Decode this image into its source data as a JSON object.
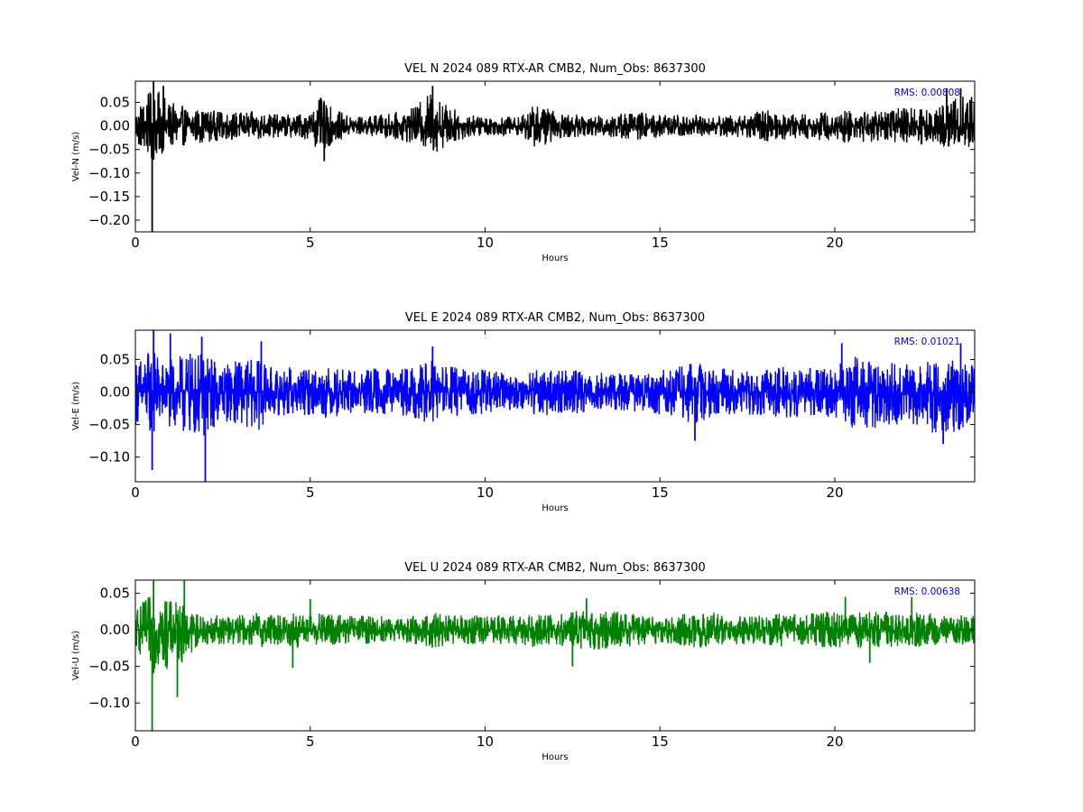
{
  "chart_data": [
    {
      "type": "line",
      "title": "VEL N 2024 089 RTX-AR  CMB2, Num_Obs: 8637300",
      "xlabel": "Hours",
      "ylabel": "Vel-N (m/s)",
      "xlim": [
        0,
        24
      ],
      "ylim": [
        -0.225,
        0.095
      ],
      "xticks": [
        0,
        5,
        10,
        15,
        20
      ],
      "yticks": [
        0.05,
        0.0,
        -0.05,
        -0.1,
        -0.15,
        -0.2
      ],
      "ytick_labels": [
        "0.05",
        "0.00",
        "−0.05",
        "−0.10",
        "−0.15",
        "−0.20"
      ],
      "grid": false,
      "series_color": "#000000",
      "annotation": "RMS:  0.00808",
      "annotation_color": "#0000ff",
      "envelope": {
        "x": [
          0,
          0.25,
          0.5,
          0.75,
          1,
          1.5,
          2,
          2.5,
          3,
          3.5,
          4,
          4.5,
          5,
          5.3,
          5.6,
          6,
          6.5,
          7,
          7.5,
          8,
          8.5,
          9,
          9.5,
          10,
          10.5,
          11,
          11.5,
          12,
          12.5,
          13,
          13.5,
          14,
          14.5,
          15,
          15.5,
          16,
          16.5,
          17,
          17.5,
          18,
          18.5,
          19,
          19.5,
          20,
          20.5,
          21,
          21.5,
          22,
          22.5,
          23,
          23.5,
          24
        ],
        "upper": [
          0.04,
          0.06,
          0.08,
          0.07,
          0.05,
          0.04,
          0.035,
          0.03,
          0.03,
          0.03,
          0.025,
          0.025,
          0.03,
          0.06,
          0.04,
          0.025,
          0.02,
          0.025,
          0.03,
          0.04,
          0.08,
          0.04,
          0.025,
          0.02,
          0.02,
          0.02,
          0.05,
          0.03,
          0.025,
          0.02,
          0.025,
          0.03,
          0.03,
          0.025,
          0.025,
          0.025,
          0.02,
          0.025,
          0.025,
          0.035,
          0.03,
          0.025,
          0.03,
          0.03,
          0.035,
          0.035,
          0.035,
          0.04,
          0.04,
          0.05,
          0.07,
          0.06
        ],
        "lower": [
          -0.04,
          -0.06,
          -0.08,
          -0.06,
          -0.05,
          -0.04,
          -0.035,
          -0.03,
          -0.03,
          -0.03,
          -0.025,
          -0.025,
          -0.03,
          -0.06,
          -0.04,
          -0.025,
          -0.02,
          -0.025,
          -0.03,
          -0.04,
          -0.06,
          -0.04,
          -0.025,
          -0.02,
          -0.02,
          -0.02,
          -0.05,
          -0.03,
          -0.025,
          -0.02,
          -0.025,
          -0.03,
          -0.03,
          -0.025,
          -0.025,
          -0.025,
          -0.02,
          -0.025,
          -0.025,
          -0.035,
          -0.03,
          -0.025,
          -0.03,
          -0.03,
          -0.04,
          -0.035,
          -0.035,
          -0.04,
          -0.04,
          -0.04,
          -0.05,
          -0.045
        ]
      },
      "spikes": [
        {
          "x": 0.48,
          "y": -0.225
        },
        {
          "x": 0.52,
          "y": 0.095
        },
        {
          "x": 0.8,
          "y": 0.085
        },
        {
          "x": 5.3,
          "y": 0.06
        },
        {
          "x": 5.4,
          "y": -0.075
        },
        {
          "x": 8.5,
          "y": 0.085
        },
        {
          "x": 23.2,
          "y": 0.08
        },
        {
          "x": 23.6,
          "y": 0.08
        }
      ]
    },
    {
      "type": "line",
      "title": "VEL E 2024 089 RTX-AR  CMB2, Num_Obs: 8637300",
      "xlabel": "Hours",
      "ylabel": "Vel-E (m/s)",
      "xlim": [
        0,
        24
      ],
      "ylim": [
        -0.138,
        0.095
      ],
      "xticks": [
        0,
        5,
        10,
        15,
        20
      ],
      "yticks": [
        0.05,
        0.0,
        -0.05,
        -0.1
      ],
      "ytick_labels": [
        "0.05",
        "0.00",
        "−0.05",
        "−0.10"
      ],
      "grid": false,
      "series_color": "#0000ff",
      "annotation": "RMS:  0.01021",
      "annotation_color": "#0000ff",
      "envelope": {
        "x": [
          0,
          0.25,
          0.5,
          0.75,
          1,
          1.5,
          2,
          2.5,
          3,
          3.5,
          4,
          4.5,
          5,
          5.5,
          6,
          6.5,
          7,
          7.5,
          8,
          8.5,
          9,
          9.5,
          10,
          10.5,
          11,
          11.5,
          12,
          12.5,
          13,
          13.5,
          14,
          14.5,
          15,
          15.5,
          16,
          16.5,
          17,
          17.5,
          18,
          18.5,
          19,
          19.5,
          20,
          20.5,
          21,
          21.5,
          22,
          22.5,
          23,
          23.5,
          24
        ],
        "upper": [
          0.05,
          0.06,
          0.07,
          0.05,
          0.05,
          0.06,
          0.06,
          0.045,
          0.05,
          0.05,
          0.035,
          0.04,
          0.035,
          0.04,
          0.035,
          0.035,
          0.04,
          0.035,
          0.04,
          0.05,
          0.04,
          0.035,
          0.035,
          0.03,
          0.025,
          0.04,
          0.035,
          0.035,
          0.03,
          0.03,
          0.03,
          0.03,
          0.035,
          0.04,
          0.045,
          0.04,
          0.035,
          0.035,
          0.035,
          0.04,
          0.04,
          0.035,
          0.04,
          0.055,
          0.05,
          0.045,
          0.045,
          0.045,
          0.05,
          0.05,
          0.045
        ],
        "lower": [
          -0.05,
          -0.06,
          -0.07,
          -0.05,
          -0.06,
          -0.07,
          -0.07,
          -0.045,
          -0.05,
          -0.06,
          -0.035,
          -0.04,
          -0.035,
          -0.04,
          -0.035,
          -0.035,
          -0.04,
          -0.035,
          -0.04,
          -0.05,
          -0.04,
          -0.035,
          -0.035,
          -0.03,
          -0.025,
          -0.04,
          -0.035,
          -0.035,
          -0.03,
          -0.03,
          -0.03,
          -0.03,
          -0.035,
          -0.04,
          -0.05,
          -0.04,
          -0.035,
          -0.035,
          -0.035,
          -0.04,
          -0.04,
          -0.035,
          -0.04,
          -0.055,
          -0.06,
          -0.05,
          -0.05,
          -0.06,
          -0.07,
          -0.06,
          -0.05
        ]
      },
      "spikes": [
        {
          "x": 0.48,
          "y": -0.12
        },
        {
          "x": 0.52,
          "y": 0.095
        },
        {
          "x": 1.0,
          "y": 0.09
        },
        {
          "x": 2.0,
          "y": -0.138
        },
        {
          "x": 1.9,
          "y": 0.085
        },
        {
          "x": 3.6,
          "y": 0.078
        },
        {
          "x": 8.5,
          "y": 0.07
        },
        {
          "x": 16.0,
          "y": -0.075
        },
        {
          "x": 20.2,
          "y": 0.075
        },
        {
          "x": 23.1,
          "y": -0.08
        },
        {
          "x": 23.6,
          "y": 0.075
        }
      ]
    },
    {
      "type": "line",
      "title": "VEL U 2024 089 RTX-AR  CMB2, Num_Obs: 8637300",
      "xlabel": "Hours",
      "ylabel": "Vel-U (m/s)",
      "xlim": [
        0,
        24
      ],
      "ylim": [
        -0.138,
        0.068
      ],
      "xticks": [
        0,
        5,
        10,
        15,
        20
      ],
      "yticks": [
        0.05,
        0.0,
        -0.05,
        -0.1
      ],
      "ytick_labels": [
        "0.05",
        "0.00",
        "−0.05",
        "−0.10"
      ],
      "grid": false,
      "series_color": "#008000",
      "annotation": "RMS:  0.00638",
      "annotation_color": "#0000ff",
      "envelope": {
        "x": [
          0,
          0.25,
          0.5,
          0.75,
          1,
          1.25,
          1.5,
          2,
          2.5,
          3,
          3.5,
          4,
          4.5,
          5,
          5.5,
          6,
          6.5,
          7,
          7.5,
          8,
          8.5,
          9,
          9.5,
          10,
          10.5,
          11,
          11.5,
          12,
          12.5,
          13,
          13.5,
          14,
          14.5,
          15,
          15.5,
          16,
          16.5,
          17,
          17.5,
          18,
          18.5,
          19,
          19.5,
          20,
          20.5,
          21,
          21.5,
          22,
          22.5,
          23,
          23.5,
          24
        ],
        "upper": [
          0.03,
          0.04,
          0.05,
          0.045,
          0.04,
          0.04,
          0.03,
          0.02,
          0.02,
          0.02,
          0.025,
          0.02,
          0.025,
          0.02,
          0.025,
          0.02,
          0.02,
          0.02,
          0.015,
          0.02,
          0.025,
          0.02,
          0.02,
          0.02,
          0.02,
          0.02,
          0.025,
          0.02,
          0.025,
          0.03,
          0.025,
          0.025,
          0.02,
          0.02,
          0.02,
          0.025,
          0.025,
          0.02,
          0.02,
          0.02,
          0.025,
          0.02,
          0.025,
          0.025,
          0.025,
          0.025,
          0.025,
          0.02,
          0.025,
          0.02,
          0.02,
          0.02
        ],
        "lower": [
          -0.03,
          -0.04,
          -0.06,
          -0.06,
          -0.05,
          -0.05,
          -0.035,
          -0.02,
          -0.02,
          -0.02,
          -0.025,
          -0.02,
          -0.03,
          -0.02,
          -0.025,
          -0.02,
          -0.02,
          -0.02,
          -0.015,
          -0.02,
          -0.025,
          -0.02,
          -0.02,
          -0.02,
          -0.02,
          -0.02,
          -0.025,
          -0.02,
          -0.025,
          -0.03,
          -0.025,
          -0.025,
          -0.02,
          -0.02,
          -0.02,
          -0.025,
          -0.025,
          -0.02,
          -0.02,
          -0.02,
          -0.025,
          -0.02,
          -0.025,
          -0.025,
          -0.025,
          -0.03,
          -0.025,
          -0.02,
          -0.025,
          -0.02,
          -0.02,
          -0.02
        ]
      },
      "spikes": [
        {
          "x": 0.48,
          "y": -0.138
        },
        {
          "x": 0.52,
          "y": 0.068
        },
        {
          "x": 1.2,
          "y": -0.092
        },
        {
          "x": 1.4,
          "y": 0.068
        },
        {
          "x": 4.5,
          "y": -0.052
        },
        {
          "x": 5.0,
          "y": 0.042
        },
        {
          "x": 12.9,
          "y": 0.043
        },
        {
          "x": 12.5,
          "y": -0.05
        },
        {
          "x": 20.3,
          "y": 0.045
        },
        {
          "x": 21.0,
          "y": -0.045
        },
        {
          "x": 22.2,
          "y": 0.045
        }
      ]
    }
  ]
}
